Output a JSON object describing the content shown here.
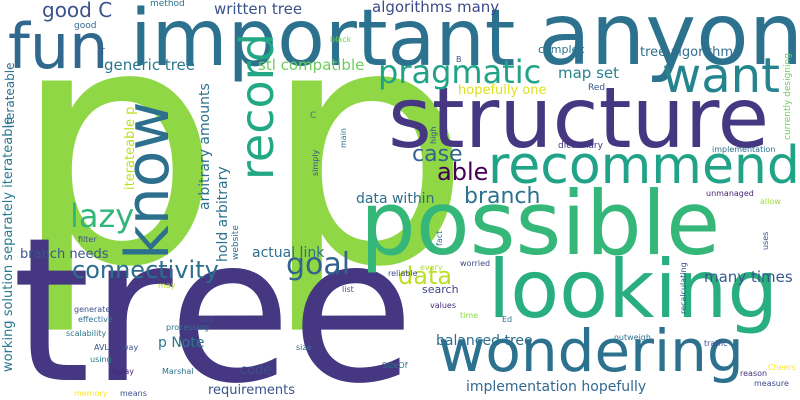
{
  "words": {
    "p_left": {
      "text": "p",
      "color": "#8fd744"
    },
    "p_right": {
      "text": "p",
      "color": "#8fd744"
    },
    "tree_big": {
      "text": "tree",
      "color": "#453781"
    },
    "important": {
      "text": "important",
      "color": "#2c728e"
    },
    "anyone": {
      "text": "anyone",
      "color": "#2c728e"
    },
    "structure": {
      "text": "structure",
      "color": "#453781"
    },
    "possible": {
      "text": "possible",
      "color": "#35b779"
    },
    "looking": {
      "text": "looking",
      "color": "#29af7f"
    },
    "wondering": {
      "text": "wondering",
      "color": "#2c728e"
    },
    "recommend": {
      "text": "recommend",
      "color": "#20a386"
    },
    "know": {
      "text": "know",
      "color": "#2d708e"
    },
    "fun": {
      "text": "fun",
      "color": "#31688e"
    },
    "want": {
      "text": "want",
      "color": "#25848e"
    },
    "record": {
      "text": "record",
      "color": "#22a884"
    },
    "pragmatic": {
      "text": "pragmatic",
      "color": "#20a386"
    },
    "case": {
      "text": "case",
      "color": "#33638d"
    },
    "able": {
      "text": "able",
      "color": "#440154"
    },
    "branch": {
      "text": "branch",
      "color": "#2c728e"
    },
    "lazy": {
      "text": "lazy",
      "color": "#32b67a"
    },
    "goal": {
      "text": "goal",
      "color": "#33638d"
    },
    "data": {
      "text": "data",
      "color": "#bddf26"
    },
    "connectivity": {
      "text": "connectivity",
      "color": "#2d708e"
    },
    "good_c": {
      "text": "good C",
      "color": "#3b528b"
    },
    "written_tree": {
      "text": "written tree",
      "color": "#3b528b"
    },
    "algorithms_many": {
      "text": "algorithms many",
      "color": "#3e4a89"
    },
    "generic_tree": {
      "text": "generic tree",
      "color": "#2a788e"
    },
    "stl_compatible": {
      "text": "stl compatible",
      "color": "#6ccd5a"
    },
    "map_set": {
      "text": "map set",
      "color": "#25848e"
    },
    "tree_algorithms": {
      "text": "tree algorithms",
      "color": "#2e6d8e"
    },
    "hopefully_one": {
      "text": "hopefully one",
      "color": "#dde318"
    },
    "data_within": {
      "text": "data within",
      "color": "#2e6d8e"
    },
    "branch_needs": {
      "text": "branch needs",
      "color": "#39568c"
    },
    "actual_link": {
      "text": "actual link",
      "color": "#2d708e"
    },
    "many_times": {
      "text": "many times",
      "color": "#38588c"
    },
    "balanced_tree": {
      "text": "balanced tree",
      "color": "#2e6d8e"
    },
    "implementation_hopefully": {
      "text": "implementation hopefully",
      "color": "#31688e"
    },
    "p_note": {
      "text": "p Note",
      "color": "#2a788e"
    },
    "requirements": {
      "text": "requirements",
      "color": "#3b528b"
    },
    "code": {
      "text": "code",
      "color": "#3b528b"
    },
    "search": {
      "text": "search",
      "color": "#404688"
    },
    "complex": {
      "text": "complex",
      "color": "#2c728e"
    },
    "method": {
      "text": "method",
      "color": "#2c728e"
    },
    "good_small": {
      "text": "good",
      "color": "#31688e"
    },
    "black": {
      "text": "black",
      "color": "#7ad151"
    },
    "b_small": {
      "text": "B",
      "color": "#3e4a89"
    },
    "red": {
      "text": "Red",
      "color": "#3b528b"
    },
    "dictionary": {
      "text": "dictionary",
      "color": "#46327e"
    },
    "implementation_small": {
      "text": "implementation",
      "color": "#2d708e"
    },
    "unmanaged": {
      "text": "unmanaged",
      "color": "#482475"
    },
    "allow": {
      "text": "allow",
      "color": "#a0da39"
    },
    "worried": {
      "text": "worried",
      "color": "#3e4a89"
    },
    "reliable": {
      "text": "reliable",
      "color": "#3e4a89"
    },
    "every": {
      "text": "every",
      "color": "#b5de2b"
    },
    "values": {
      "text": "values",
      "color": "#472d7b"
    },
    "time": {
      "text": "time",
      "color": "#90d743"
    },
    "ed": {
      "text": "Ed",
      "color": "#2d708e"
    },
    "outweigh": {
      "text": "outweigh",
      "color": "#2c728e"
    },
    "traffic": {
      "text": "traffic",
      "color": "#3b528b"
    },
    "reason": {
      "text": "reason",
      "color": "#46327e"
    },
    "measure": {
      "text": "measure",
      "color": "#3e4a89"
    },
    "cheers": {
      "text": "Cheers",
      "color": "#fde725"
    },
    "sizeof": {
      "text": "SizeOf",
      "color": "#2c728e"
    },
    "size": {
      "text": "size",
      "color": "#2c728e"
    },
    "processing": {
      "text": "processing",
      "color": "#2c728e"
    },
    "will": {
      "text": "will",
      "color": "#3b528b"
    },
    "avl": {
      "text": "AVL",
      "color": "#3b528b"
    },
    "way": {
      "text": "way",
      "color": "#3b528b"
    },
    "using": {
      "text": "using",
      "color": "#2a788e"
    },
    "splay": {
      "text": "Splay",
      "color": "#482878"
    },
    "marshal": {
      "text": "Marshal",
      "color": "#2c728e"
    },
    "means": {
      "text": "means",
      "color": "#3b528b"
    },
    "memory": {
      "text": "memory",
      "color": "#fde725"
    },
    "generate": {
      "text": "generate",
      "color": "#3b528b"
    },
    "effective": {
      "text": "effective",
      "color": "#2c728e"
    },
    "scalability": {
      "text": "scalability",
      "color": "#2a788e"
    },
    "may": {
      "text": "may",
      "color": "#b8de29"
    },
    "list": {
      "text": "list",
      "color": "#3b528b"
    },
    "filter": {
      "text": "filter",
      "color": "#3b528b"
    },
    "t_small": {
      "text": "T",
      "color": "#3b528b"
    },
    "c_small": {
      "text": "C",
      "color": "#2a788e"
    },
    "simply": {
      "text": "simply",
      "color": "#3b528b"
    },
    "main": {
      "text": "main",
      "color": "#2a788e"
    },
    "high": {
      "text": "high",
      "color": "#3b528b"
    },
    "fact": {
      "text": "fact",
      "color": "#2c728e"
    },
    "website": {
      "text": "website",
      "color": "#2c728e"
    },
    "uses": {
      "text": "uses",
      "color": "#3b528b"
    },
    "recalculating": {
      "text": "recalculating",
      "color": "#3b528b"
    },
    "currently_designing": {
      "text": "currently designing",
      "color": "#6ccd5a"
    },
    "iterateable_top": {
      "text": "iterateable",
      "color": "#2d708e"
    },
    "iterateable_p": {
      "text": "iterateable p",
      "color": "#bddf26"
    },
    "arbitrary_amounts": {
      "text": "arbitrary amounts",
      "color": "#2c728e"
    },
    "hold_arbitrary": {
      "text": "hold arbitrary",
      "color": "#2c728e"
    },
    "working_solution": {
      "text": "working solution separately iterateable",
      "color": "#2a788e"
    }
  }
}
